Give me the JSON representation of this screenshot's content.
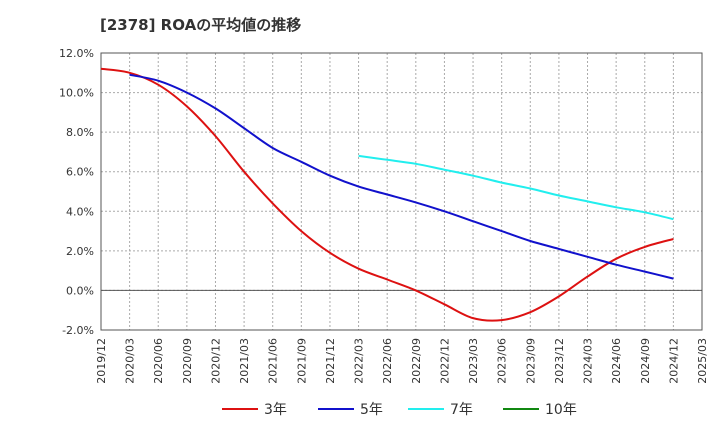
{
  "chart_data": {
    "type": "line",
    "title": "[2378]  ROAの平均値の推移",
    "xlabel": "",
    "ylabel": "",
    "ylim": [
      -2.0,
      12.0
    ],
    "ytick_labels": [
      "-2.0%",
      "0.0%",
      "2.0%",
      "4.0%",
      "6.0%",
      "8.0%",
      "10.0%",
      "12.0%"
    ],
    "ytick_values": [
      -2,
      0,
      2,
      4,
      6,
      8,
      10,
      12
    ],
    "x": [
      "2019/12",
      "2020/03",
      "2020/06",
      "2020/09",
      "2020/12",
      "2021/03",
      "2021/06",
      "2021/09",
      "2021/12",
      "2022/03",
      "2022/06",
      "2022/09",
      "2022/12",
      "2023/03",
      "2023/06",
      "2023/09",
      "2023/12",
      "2024/03",
      "2024/06",
      "2024/09",
      "2024/12",
      "2025/03"
    ],
    "grid": true,
    "legend_position": "bottom",
    "series": [
      {
        "name": "3年",
        "color": "#dd1111",
        "values": [
          11.2,
          11.0,
          10.4,
          9.3,
          7.8,
          6.0,
          4.4,
          3.0,
          1.9,
          1.1,
          0.55,
          0.0,
          -0.7,
          -1.4,
          -1.5,
          -1.1,
          -0.3,
          0.7,
          1.6,
          2.2,
          2.6,
          null
        ]
      },
      {
        "name": "5年",
        "color": "#1111cc",
        "values": [
          null,
          10.9,
          10.6,
          10.0,
          9.2,
          8.2,
          7.2,
          6.5,
          5.8,
          5.25,
          4.85,
          4.45,
          4.0,
          3.5,
          3.0,
          2.5,
          2.1,
          1.7,
          1.3,
          0.95,
          0.6,
          null
        ]
      },
      {
        "name": "7年",
        "color": "#22eeee",
        "values": [
          null,
          null,
          null,
          null,
          null,
          null,
          null,
          null,
          null,
          6.8,
          6.6,
          6.4,
          6.1,
          5.8,
          5.45,
          5.15,
          4.8,
          4.5,
          4.2,
          3.95,
          3.6,
          null
        ]
      },
      {
        "name": "10年",
        "color": "#118811",
        "values": [
          null,
          null,
          null,
          null,
          null,
          null,
          null,
          null,
          null,
          null,
          null,
          null,
          null,
          null,
          null,
          null,
          null,
          null,
          null,
          null,
          null,
          null
        ]
      }
    ]
  }
}
